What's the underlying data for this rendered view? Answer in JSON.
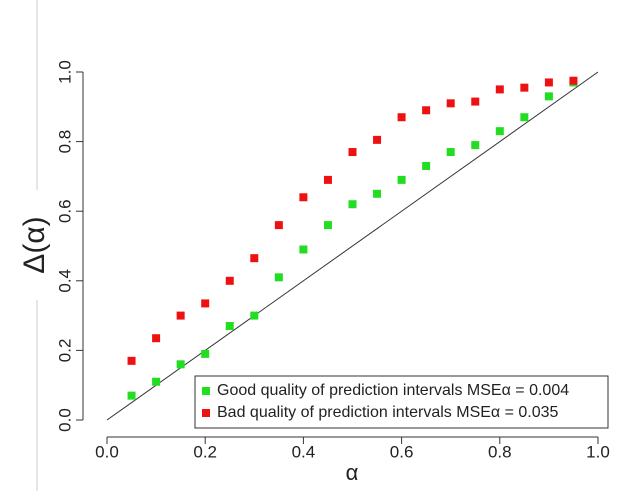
{
  "chart_data": {
    "type": "scatter",
    "x_label": "α",
    "y_label": "Δ(α)",
    "xlim": [
      0,
      1
    ],
    "ylim": [
      0,
      1
    ],
    "xticks": [
      {
        "value": 0,
        "label": "0.0"
      },
      {
        "value": 0.2,
        "label": "0.2"
      },
      {
        "value": 0.4,
        "label": "0.4"
      },
      {
        "value": 0.6,
        "label": "0.6"
      },
      {
        "value": 0.8,
        "label": "0.8"
      },
      {
        "value": 1,
        "label": "1.0"
      }
    ],
    "yticks": [
      {
        "value": 0,
        "label": "0.0"
      },
      {
        "value": 0.2,
        "label": "0.2"
      },
      {
        "value": 0.4,
        "label": "0.4"
      },
      {
        "value": 0.6,
        "label": "0.6"
      },
      {
        "value": 0.8,
        "label": "0.8"
      },
      {
        "value": 1,
        "label": "1.0"
      }
    ],
    "x": [
      0.05,
      0.1,
      0.15,
      0.2,
      0.25,
      0.3,
      0.35,
      0.4,
      0.45,
      0.5,
      0.55,
      0.6,
      0.65,
      0.7,
      0.75,
      0.8,
      0.85,
      0.9,
      0.95
    ],
    "series": [
      {
        "name": "Good quality of prediction intervals MSEα = 0.004",
        "color": "#22dd22",
        "values": [
          0.07,
          0.11,
          0.16,
          0.19,
          0.27,
          0.3,
          0.41,
          0.49,
          0.56,
          0.62,
          0.65,
          0.69,
          0.73,
          0.77,
          0.79,
          0.83,
          0.87,
          0.93,
          0.97
        ]
      },
      {
        "name": "Bad quality of prediction intervals MSEα = 0.035",
        "color": "#ee1111",
        "values": [
          0.17,
          0.235,
          0.3,
          0.335,
          0.4,
          0.465,
          0.56,
          0.64,
          0.69,
          0.77,
          0.805,
          0.87,
          0.89,
          0.91,
          0.915,
          0.95,
          0.955,
          0.97,
          0.975
        ]
      }
    ],
    "legend": "bottom-right"
  }
}
